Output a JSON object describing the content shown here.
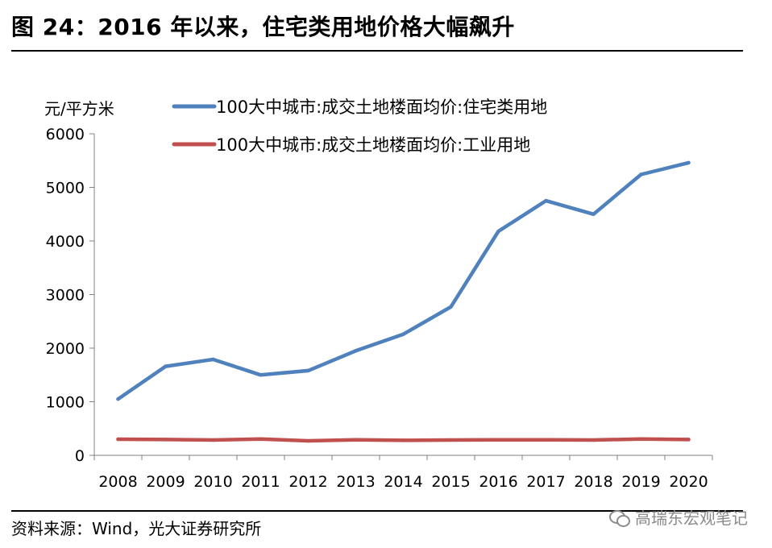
{
  "header": {
    "title": "图 24：2016 年以来，住宅类用地价格大幅飙升"
  },
  "footer": {
    "source": "资料来源：Wind，光大证券研究所",
    "watermark": "高瑞东宏观笔记"
  },
  "colors": {
    "residential": "#4f81bd",
    "industrial": "#c0504d",
    "axis": "#808080"
  },
  "icons": {
    "watermark": "wechat-icon"
  },
  "chart_data": {
    "type": "line",
    "title": "",
    "ylabel": "元/平方米",
    "xlabel": "",
    "ylim": [
      0,
      6000
    ],
    "yticks": [
      0,
      1000,
      2000,
      3000,
      4000,
      5000,
      6000
    ],
    "grid": false,
    "legend_position": "top-center",
    "x": [
      "2008",
      "2009",
      "2010",
      "2011",
      "2012",
      "2013",
      "2014",
      "2015",
      "2016",
      "2017",
      "2018",
      "2019",
      "2020"
    ],
    "series": [
      {
        "name": "100大中城市:成交土地楼面均价:住宅类用地",
        "values": [
          1050,
          1660,
          1790,
          1500,
          1580,
          1950,
          2260,
          2770,
          4180,
          4750,
          4500,
          5240,
          5460
        ]
      },
      {
        "name": "100大中城市:成交土地楼面均价:工业用地",
        "values": [
          300,
          295,
          285,
          305,
          270,
          290,
          280,
          285,
          290,
          290,
          285,
          305,
          295
        ]
      }
    ]
  }
}
